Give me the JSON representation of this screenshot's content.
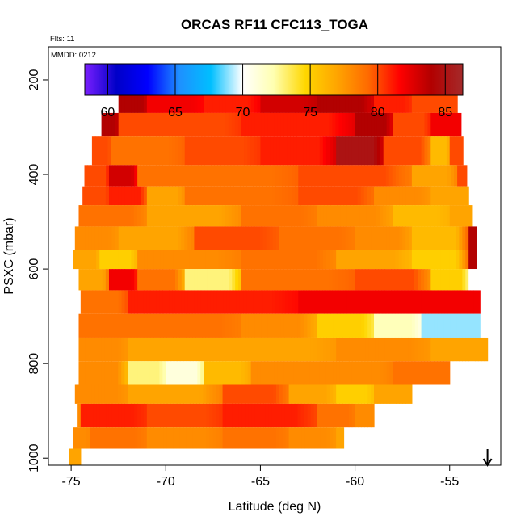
{
  "chart_data": {
    "type": "heatmap",
    "title": "ORCAS RF11 CFC113_TOGA",
    "flights_label": "Flts: 11",
    "date_label": "MMDD: 0212",
    "xlabel": "Latitude (deg N)",
    "ylabel": "PSXC (mbar)",
    "xlim": [
      -76.2,
      -52.3
    ],
    "ylim": [
      1015,
      130
    ],
    "y_reversed": true,
    "x_ticks": [
      -75,
      -70,
      -65,
      -60,
      -55
    ],
    "x_tick_labels": [
      "-75",
      "-70",
      "-65",
      "-60",
      "-55"
    ],
    "y_ticks": [
      200,
      400,
      600,
      800,
      1000
    ],
    "y_tick_labels": [
      "200",
      "400",
      "600",
      "800",
      "1000"
    ],
    "colorbar": {
      "ticks": [
        60,
        65,
        70,
        75,
        80,
        85
      ],
      "tick_labels": [
        "60",
        "65",
        "70",
        "75",
        "80",
        "85"
      ],
      "range": [
        58.3,
        86.3
      ],
      "colors": [
        "#7b1fff",
        "#0000c8",
        "#0000ff",
        "#1e90ff",
        "#00bfff",
        "#ffffff",
        "#ffffb0",
        "#ffd700",
        "#ffa500",
        "#ff6a00",
        "#ff0000",
        "#b20000",
        "#a52a2a"
      ]
    },
    "grid": false,
    "legend": "none",
    "arrow_marker": {
      "x": -53,
      "direction": "down"
    },
    "bands": [
      {
        "p_top": 175,
        "p_bot": 225,
        "segments": [
          [
            -71.9,
            -71.7,
            84
          ],
          [
            -71.7,
            -70.5,
            74
          ],
          [
            -70.5,
            -69.5,
            68
          ],
          [
            -69.5,
            -68.0,
            72
          ],
          [
            -68.0,
            -66.5,
            75
          ],
          [
            -66.5,
            -65.0,
            68
          ],
          [
            -65.0,
            -64.0,
            73
          ],
          [
            -64.0,
            -62.0,
            67
          ],
          [
            -62.0,
            -60.0,
            63
          ],
          [
            -60.0,
            -59.0,
            61
          ],
          [
            -59.0,
            -57.5,
            70
          ],
          [
            -57.5,
            -56.0,
            68
          ],
          [
            -56.0,
            -55.0,
            62
          ],
          [
            -55.0,
            -54.8,
            60
          ]
        ]
      },
      {
        "p_top": 225,
        "p_bot": 270,
        "segments": [
          [
            -72.5,
            -71.0,
            84
          ],
          [
            -71.0,
            -68.0,
            82
          ],
          [
            -68.0,
            -65.0,
            81
          ],
          [
            -65.0,
            -62.0,
            83
          ],
          [
            -62.0,
            -59.0,
            84
          ],
          [
            -59.0,
            -57.0,
            81
          ],
          [
            -57.0,
            -54.6,
            80
          ]
        ]
      },
      {
        "p_top": 270,
        "p_bot": 320,
        "segments": [
          [
            -73.4,
            -72.5,
            84
          ],
          [
            -72.5,
            -70.0,
            80
          ],
          [
            -70.0,
            -66.0,
            80
          ],
          [
            -66.0,
            -60.0,
            81
          ],
          [
            -60.0,
            -58.0,
            84
          ],
          [
            -58.0,
            -56.0,
            80
          ],
          [
            -56.0,
            -54.4,
            82
          ]
        ]
      },
      {
        "p_top": 320,
        "p_bot": 380,
        "segments": [
          [
            -73.9,
            -72.9,
            80
          ],
          [
            -72.9,
            -69.0,
            79
          ],
          [
            -69.0,
            -65.0,
            80
          ],
          [
            -65.0,
            -61.0,
            81
          ],
          [
            -61.0,
            -58.5,
            85
          ],
          [
            -58.5,
            -56.0,
            80
          ],
          [
            -56.0,
            -55.0,
            76
          ],
          [
            -55.0,
            -54.3,
            80
          ]
        ]
      },
      {
        "p_top": 380,
        "p_bot": 425,
        "segments": [
          [
            -74.3,
            -73.0,
            80
          ],
          [
            -73.0,
            -71.5,
            83
          ],
          [
            -71.5,
            -69.0,
            79
          ],
          [
            -69.0,
            -63.0,
            79
          ],
          [
            -63.0,
            -57.0,
            80
          ],
          [
            -57.0,
            -54.6,
            77
          ],
          [
            -54.6,
            -54.1,
            80
          ]
        ]
      },
      {
        "p_top": 425,
        "p_bot": 465,
        "segments": [
          [
            -74.4,
            -73.0,
            80
          ],
          [
            -73.0,
            -71.0,
            81
          ],
          [
            -71.0,
            -69.0,
            77
          ],
          [
            -69.0,
            -63.0,
            79
          ],
          [
            -63.0,
            -59.0,
            80
          ],
          [
            -59.0,
            -56.0,
            78
          ],
          [
            -56.0,
            -54.0,
            77
          ]
        ]
      },
      {
        "p_top": 465,
        "p_bot": 510,
        "segments": [
          [
            -74.6,
            -71.0,
            79
          ],
          [
            -71.0,
            -66.0,
            77
          ],
          [
            -66.0,
            -62.0,
            79
          ],
          [
            -62.0,
            -58.0,
            78
          ],
          [
            -58.0,
            -55.0,
            76
          ],
          [
            -55.0,
            -53.8,
            77
          ]
        ]
      },
      {
        "p_top": 510,
        "p_bot": 560,
        "segments": [
          [
            -74.8,
            -72.5,
            78
          ],
          [
            -72.5,
            -68.5,
            77
          ],
          [
            -68.5,
            -64.0,
            80
          ],
          [
            -64.0,
            -60.0,
            79
          ],
          [
            -60.0,
            -57.0,
            78
          ],
          [
            -57.0,
            -54.0,
            76
          ],
          [
            -54.0,
            -53.6,
            84
          ]
        ]
      },
      {
        "p_top": 560,
        "p_bot": 600,
        "segments": [
          [
            -74.9,
            -73.5,
            77
          ],
          [
            -73.5,
            -71.5,
            75
          ],
          [
            -71.5,
            -66.0,
            78
          ],
          [
            -66.0,
            -61.0,
            79
          ],
          [
            -61.0,
            -57.0,
            77
          ],
          [
            -57.0,
            -54.0,
            75
          ],
          [
            -54.0,
            -53.6,
            84
          ]
        ]
      },
      {
        "p_top": 600,
        "p_bot": 645,
        "segments": [
          [
            -74.6,
            -73.0,
            77
          ],
          [
            -73.0,
            -71.5,
            82
          ],
          [
            -71.5,
            -69.0,
            79
          ],
          [
            -69.0,
            -66.0,
            73
          ],
          [
            -66.0,
            -60.0,
            79
          ],
          [
            -60.0,
            -56.0,
            80
          ],
          [
            -56.0,
            -54.0,
            75
          ],
          [
            -54.0,
            -53.5,
            70
          ]
        ]
      },
      {
        "p_top": 645,
        "p_bot": 695,
        "segments": [
          [
            -74.5,
            -72.0,
            79
          ],
          [
            -72.0,
            -69.0,
            81
          ],
          [
            -69.0,
            -63.0,
            81
          ],
          [
            -63.0,
            -57.0,
            82
          ],
          [
            -57.0,
            -53.4,
            82
          ]
        ]
      },
      {
        "p_top": 695,
        "p_bot": 745,
        "segments": [
          [
            -74.6,
            -71.0,
            79
          ],
          [
            -71.0,
            -66.0,
            79
          ],
          [
            -66.0,
            -62.0,
            78
          ],
          [
            -62.0,
            -59.0,
            75
          ],
          [
            -59.0,
            -56.5,
            72
          ],
          [
            -56.5,
            -53.4,
            69
          ]
        ]
      },
      {
        "p_top": 745,
        "p_bot": 795,
        "segments": [
          [
            -74.6,
            -72.0,
            78
          ],
          [
            -72.0,
            -67.0,
            77
          ],
          [
            -67.0,
            -61.0,
            77
          ],
          [
            -61.0,
            -56.0,
            78
          ],
          [
            -56.0,
            -53.0,
            77
          ]
        ]
      },
      {
        "p_top": 795,
        "p_bot": 845,
        "segments": [
          [
            -74.6,
            -72.0,
            78
          ],
          [
            -72.0,
            -70.0,
            73
          ],
          [
            -70.0,
            -68.0,
            71
          ],
          [
            -68.0,
            -65.5,
            76
          ],
          [
            -65.5,
            -61.0,
            78
          ],
          [
            -61.0,
            -58.0,
            78
          ],
          [
            -58.0,
            -55.0,
            79
          ]
        ]
      },
      {
        "p_top": 845,
        "p_bot": 885,
        "segments": [
          [
            -74.8,
            -72.0,
            78
          ],
          [
            -72.0,
            -67.0,
            77
          ],
          [
            -67.0,
            -63.5,
            80
          ],
          [
            -63.5,
            -61.0,
            77
          ],
          [
            -61.0,
            -59.0,
            75
          ],
          [
            -59.0,
            -57.0,
            77
          ]
        ]
      },
      {
        "p_top": 885,
        "p_bot": 935,
        "segments": [
          [
            -74.7,
            -74.5,
            78
          ],
          [
            -74.5,
            -71.0,
            81
          ],
          [
            -71.0,
            -67.0,
            80
          ],
          [
            -67.0,
            -62.0,
            81
          ],
          [
            -62.0,
            -60.0,
            79
          ],
          [
            -60.0,
            -59.0,
            78
          ]
        ]
      },
      {
        "p_top": 935,
        "p_bot": 980,
        "segments": [
          [
            -74.9,
            -74.0,
            78
          ],
          [
            -74.0,
            -71.0,
            79
          ],
          [
            -71.0,
            -67.0,
            78
          ],
          [
            -67.0,
            -63.5,
            79
          ],
          [
            -63.5,
            -61.0,
            78
          ],
          [
            -61.0,
            -60.6,
            77
          ]
        ]
      },
      {
        "p_top": 980,
        "p_bot": 1015,
        "segments": [
          [
            -75.1,
            -74.5,
            77
          ]
        ]
      }
    ]
  }
}
